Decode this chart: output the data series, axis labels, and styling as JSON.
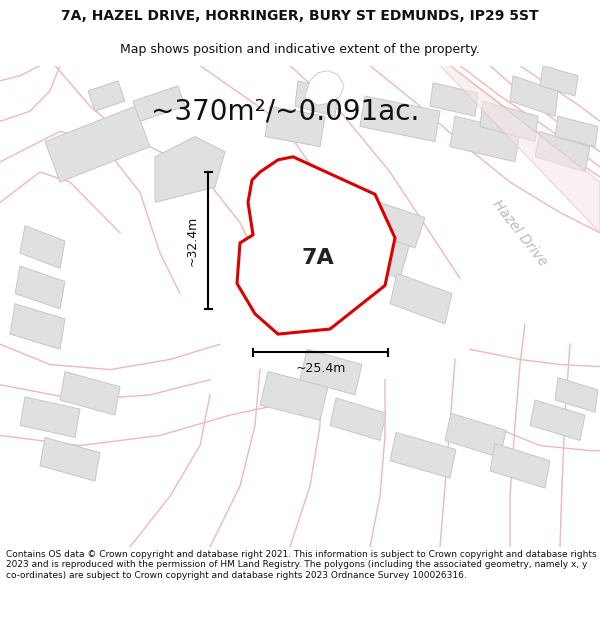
{
  "title_line1": "7A, HAZEL DRIVE, HORRINGER, BURY ST EDMUNDS, IP29 5ST",
  "title_line2": "Map shows position and indicative extent of the property.",
  "area_label": "~370m²/~0.091ac.",
  "plot_label": "7A",
  "dim_width": "~25.4m",
  "dim_height": "~32.4m",
  "road_label": "Hazel Drive",
  "footer_text": "Contains OS data © Crown copyright and database right 2021. This information is subject to Crown copyright and database rights 2023 and is reproduced with the permission of HM Land Registry. The polygons (including the associated geometry, namely x, y co-ordinates) are subject to Crown copyright and database rights 2023 Ordnance Survey 100026316.",
  "bg_color": "#ffffff",
  "map_bg": "#ffffff",
  "plot_fill": "#ffffff",
  "plot_edge": "#dd0000",
  "road_color": "#f0b8b8",
  "building_fill": "#e0e0e0",
  "building_edge": "#c8c8c8",
  "faint_line_color": "#f0b8b8",
  "dim_line_color": "#000000",
  "title_fontsize": 10,
  "subtitle_fontsize": 9,
  "area_fontsize": 20,
  "label_fontsize": 16,
  "footer_fontsize": 6.5,
  "road_label_fontsize": 10
}
